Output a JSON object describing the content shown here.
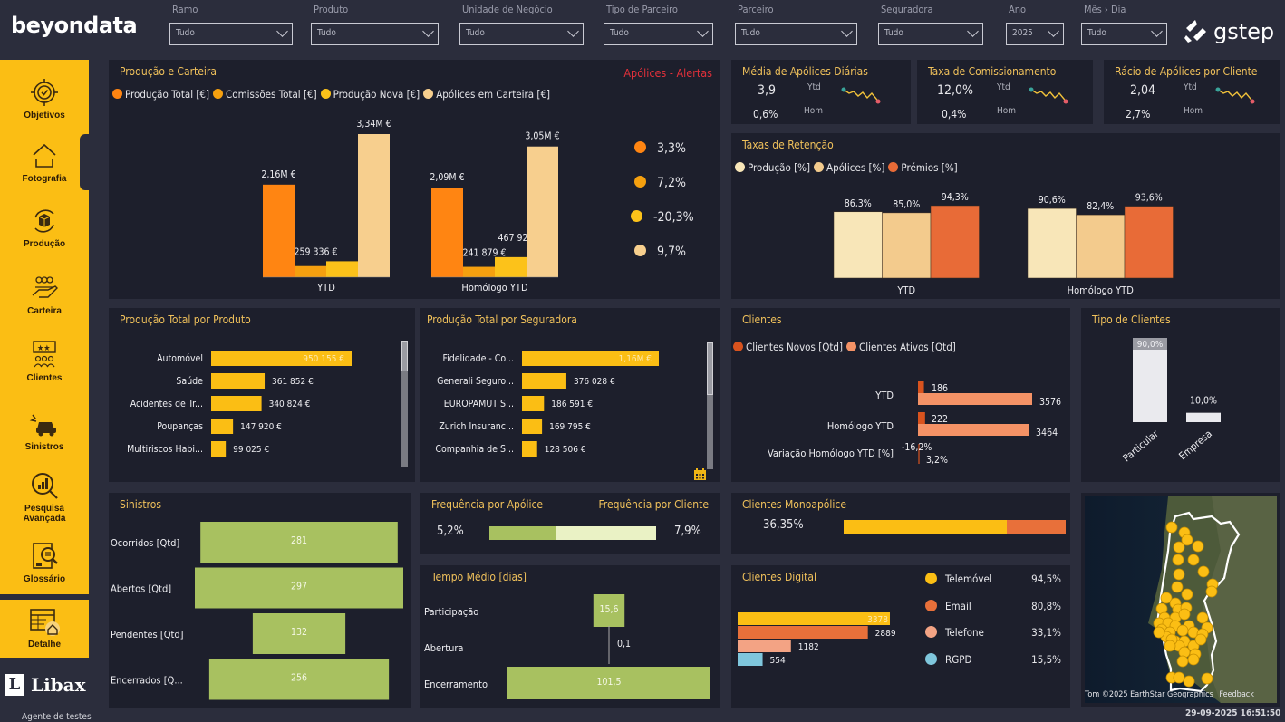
{
  "header": {
    "logo_left": "beyondata",
    "logo_right": "gstep",
    "filters": [
      {
        "label": "Ramo",
        "value": "Tudo"
      },
      {
        "label": "Produto",
        "value": "Tudo"
      },
      {
        "label": "Unidade de Negócio",
        "value": "Tudo"
      },
      {
        "label": "Tipo de Parceiro",
        "value": "Tudo"
      },
      {
        "label": "Parceiro",
        "value": "Tudo"
      },
      {
        "label": "Seguradora",
        "value": "Tudo"
      },
      {
        "label": "Ano",
        "value": "2025"
      },
      {
        "label": "Mês › Dia",
        "value": "Tudo"
      }
    ]
  },
  "sidebar": {
    "items": [
      {
        "label": "Objetivos",
        "icon": "target-icon"
      },
      {
        "label": "Fotografia",
        "icon": "home-icon"
      },
      {
        "label": "Produção",
        "icon": "box-cycle-icon"
      },
      {
        "label": "Carteira",
        "icon": "hand-people-icon"
      },
      {
        "label": "Clientes",
        "icon": "rating-people-icon"
      },
      {
        "label": "Sinistros",
        "icon": "car-crash-icon"
      },
      {
        "label": "Pesquisa Avançada",
        "icon": "search-chart-icon"
      },
      {
        "label": "Glossário",
        "icon": "book-search-icon"
      }
    ],
    "detail": {
      "label": "Detalhe",
      "icon": "table-home-icon"
    },
    "brand": "Libax",
    "agent": "Agente de testes"
  },
  "producao_carteira": {
    "title": "Produção e Carteira",
    "alert_link": "Apólices - Alertas",
    "legend": [
      {
        "name": "Produção Total [€]",
        "color": "#ff8512"
      },
      {
        "name": "Comissões Total [€]",
        "color": "#f5a00f"
      },
      {
        "name": "Produção Nova [€]",
        "color": "#fcc21a"
      },
      {
        "name": "Apólices em Carteira [€]",
        "color": "#f7cf8e"
      }
    ],
    "variations": [
      "3,3%",
      "7,2%",
      "-20,3%",
      "9,7%"
    ]
  },
  "kpis": [
    {
      "title": "Média de Apólices Diárias",
      "ytd_value": "3,9",
      "ytd_label": "Ytd",
      "hom_value": "0,6%",
      "hom_label": "Hom"
    },
    {
      "title": "Taxa de Comissionamento",
      "ytd_value": "12,0%",
      "ytd_label": "Ytd",
      "hom_value": "0,4%",
      "hom_label": "Hom"
    },
    {
      "title": "Rácio de Apólices por Cliente",
      "ytd_value": "2,04",
      "ytd_label": "Ytd",
      "hom_value": "2,7%",
      "hom_label": "Hom"
    }
  ],
  "retencao": {
    "title": "Taxas de Retenção",
    "legend": [
      {
        "name": "Produção [%]",
        "color": "#f8e6b8"
      },
      {
        "name": "Apólices [%]",
        "color": "#f3cb8d"
      },
      {
        "name": "Prémios [%]",
        "color": "#e86b37"
      }
    ]
  },
  "produto": {
    "title": "Produção Total por Produto"
  },
  "seguradora": {
    "title": "Produção Total por Seguradora"
  },
  "clientes": {
    "title": "Clientes",
    "legend": [
      {
        "name": "Clientes Novos [Qtd]",
        "color": "#d9531e"
      },
      {
        "name": "Clientes Ativos [Qtd]",
        "color": "#f49266"
      }
    ]
  },
  "tipo_clientes": {
    "title": "Tipo de Clientes"
  },
  "sinistros": {
    "title": "Sinistros"
  },
  "frequencia": {
    "title_left": "Frequência por Apólice",
    "title_right": "Frequência por Cliente",
    "value_left": "5,2%",
    "value_right": "7,9%",
    "fraction_left": 0.4,
    "color_left": "#a8c160",
    "color_right": "#eaf2c5"
  },
  "tempo_medio": {
    "title": "Tempo Médio [dias]"
  },
  "monoapolice": {
    "title": "Clientes Monoapólice",
    "value": "36,35%",
    "fraction_primary": 0.735,
    "color_primary": "#fbbe14",
    "color_secondary": "#e8703a"
  },
  "digital": {
    "title": "Clientes Digital",
    "legend": [
      {
        "name": "Telemóvel",
        "pct": "94,5%",
        "color": "#fbbe14"
      },
      {
        "name": "Email",
        "pct": "80,8%",
        "color": "#e8703a"
      },
      {
        "name": "Telefone",
        "pct": "33,1%",
        "color": "#f3a384"
      },
      {
        "name": "RGPD",
        "pct": "15,5%",
        "color": "#7fc6dc"
      }
    ]
  },
  "map": {
    "attribution": "Tom ©2025 EarthStar Geographics",
    "feedback": "Feedback"
  },
  "footer": {
    "timestamp": "29-09-2025 16:51:50"
  },
  "chart_data": [
    {
      "id": "producao_carteira",
      "type": "bar",
      "title": "Produção e Carteira",
      "categories": [
        "YTD",
        "Homólogo YTD"
      ],
      "series": [
        {
          "name": "Produção Total [€]",
          "values": [
            2160000,
            2090000
          ],
          "labels": [
            "2,16M €",
            "2,09M €"
          ]
        },
        {
          "name": "Comissões Total [€]",
          "values": [
            259336,
            241879
          ],
          "labels": [
            "259 336 €",
            "241 879 €"
          ]
        },
        {
          "name": "Produção Nova [€]",
          "values": [
            372000,
            467926
          ],
          "labels": [
            "",
            "467 926 €"
          ]
        },
        {
          "name": "Apólices em Carteira [€]",
          "values": [
            3340000,
            3050000
          ],
          "labels": [
            "3,34M €",
            "3,05M €"
          ]
        }
      ],
      "ylim": [
        0,
        3500000
      ]
    },
    {
      "id": "retencao",
      "type": "bar",
      "title": "Taxas de Retenção",
      "categories": [
        "YTD",
        "Homólogo YTD"
      ],
      "series": [
        {
          "name": "Produção [%]",
          "values": [
            86.3,
            90.6
          ],
          "labels": [
            "86,3%",
            "90,6%"
          ]
        },
        {
          "name": "Apólices [%]",
          "values": [
            85.0,
            82.4
          ],
          "labels": [
            "85,0%",
            "82,4%"
          ]
        },
        {
          "name": "Prémios [%]",
          "values": [
            94.3,
            93.6
          ],
          "labels": [
            "94,3%",
            "93,6%"
          ]
        }
      ]
    },
    {
      "id": "produto",
      "type": "bar",
      "orientation": "horizontal",
      "title": "Produção Total por Produto",
      "categories": [
        "Automóvel",
        "Saúde",
        "Acidentes de Tr...",
        "Poupanças",
        "Multiriscos Habi..."
      ],
      "values": [
        950155,
        361852,
        340824,
        147920,
        99025
      ],
      "labels": [
        "950 155 €",
        "361 852 €",
        "340 824 €",
        "147 920 €",
        "99 025 €"
      ]
    },
    {
      "id": "seguradora",
      "type": "bar",
      "orientation": "horizontal",
      "title": "Produção Total por Seguradora",
      "categories": [
        "Fidelidade - Co...",
        "Generali Seguro...",
        "EUROPAMUT S...",
        "Zurich Insuranc...",
        "Companhia de S..."
      ],
      "values": [
        1160000,
        376028,
        186591,
        169795,
        128506
      ],
      "labels": [
        "1,16M €",
        "376 028 €",
        "186 591 €",
        "169 795 €",
        "128 506 €"
      ]
    },
    {
      "id": "clientes",
      "type": "bar",
      "orientation": "horizontal",
      "title": "Clientes",
      "categories": [
        "YTD",
        "Homólogo YTD",
        "Variação Homólogo YTD [%]"
      ],
      "series": [
        {
          "name": "Clientes Novos [Qtd]",
          "values": [
            186,
            222,
            -16.2
          ],
          "labels": [
            "186",
            "222",
            "-16,2%"
          ]
        },
        {
          "name": "Clientes Ativos [Qtd]",
          "values": [
            3576,
            3464,
            3.2
          ],
          "labels": [
            "3576",
            "3464",
            "3,2%"
          ]
        }
      ]
    },
    {
      "id": "tipo_clientes",
      "type": "bar",
      "title": "Tipo de Clientes",
      "categories": [
        "Particular",
        "Empresa"
      ],
      "values": [
        90.0,
        10.0
      ],
      "labels": [
        "90,0%",
        "10,0%"
      ]
    },
    {
      "id": "sinistros",
      "type": "bar",
      "orientation": "funnel",
      "title": "Sinistros",
      "categories": [
        "Ocorridos [Qtd]",
        "Abertos [Qtd]",
        "Pendentes [Qtd]",
        "Encerrados [Q..."
      ],
      "values": [
        281,
        297,
        132,
        256
      ]
    },
    {
      "id": "tempo_medio",
      "type": "bar",
      "orientation": "funnel",
      "title": "Tempo Médio [dias]",
      "categories": [
        "Participação",
        "Abertura",
        "Encerramento"
      ],
      "values": [
        15.6,
        0.1,
        101.5
      ],
      "labels": [
        "15,6",
        "0,1",
        "101,5"
      ]
    },
    {
      "id": "digital",
      "type": "bar",
      "orientation": "horizontal",
      "title": "Clientes Digital",
      "categories": [
        "Telemóvel",
        "Email",
        "Telefone",
        "RGPD"
      ],
      "values": [
        3378,
        2889,
        1182,
        554
      ]
    }
  ]
}
